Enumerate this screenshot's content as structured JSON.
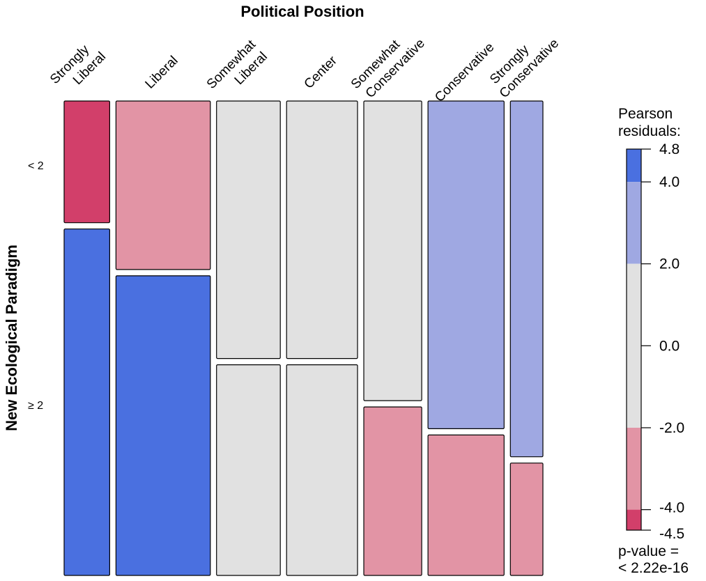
{
  "chart_data": {
    "type": "mosaic",
    "title": "Political Position",
    "ylabel": "New Ecological Paradigm",
    "columns": [
      {
        "name": "Strongly Liberal",
        "lines": [
          "Strongly",
          "Liberal"
        ],
        "weight": 0.07
      },
      {
        "name": "Liberal",
        "lines": [
          "Liberal"
        ],
        "weight": 0.145
      },
      {
        "name": "Somewhat Liberal",
        "lines": [
          "Somewhat",
          "Liberal"
        ],
        "weight": 0.098
      },
      {
        "name": "Center",
        "lines": [
          "Center"
        ],
        "weight": 0.109
      },
      {
        "name": "Somewhat Conservative",
        "lines": [
          "Somewhat",
          "Conservative"
        ],
        "weight": 0.089
      },
      {
        "name": "Conservative",
        "lines": [
          "Conservative"
        ],
        "weight": 0.117
      },
      {
        "name": "Strongly Conservative",
        "lines": [
          "Strongly",
          "Conservative"
        ],
        "weight": 0.05
      }
    ],
    "rows": [
      "< 2",
      "≥ 2"
    ],
    "top_share": [
      0.26,
      0.36,
      0.55,
      0.55,
      0.64,
      0.7,
      0.76
    ],
    "residual_class": [
      [
        "neg_strong",
        "neg",
        "none",
        "none",
        "none",
        "pos",
        "pos"
      ],
      [
        "pos_strong",
        "pos_strong",
        "none",
        "none",
        "neg",
        "neg",
        "neg"
      ]
    ],
    "colors": {
      "pos_strong": "#4a70e0",
      "pos": "#9fa8e2",
      "none": "#e1e1e1",
      "neg": "#e294a5",
      "neg_strong": "#d23f6a"
    },
    "legend": {
      "title_lines": [
        "Pearson",
        "residuals:"
      ],
      "range": [
        -4.5,
        4.8
      ],
      "ticks": [
        "4.8",
        "4.0",
        "2.0",
        "0.0",
        "-2.0",
        "-4.0",
        "-4.5"
      ],
      "tick_values": [
        4.8,
        4.0,
        2.0,
        0.0,
        -2.0,
        -4.0,
        -4.5
      ],
      "bands": [
        {
          "from": 4.0,
          "to": 4.8,
          "class": "pos_strong"
        },
        {
          "from": 2.0,
          "to": 4.0,
          "class": "pos"
        },
        {
          "from": -2.0,
          "to": 2.0,
          "class": "none"
        },
        {
          "from": -4.0,
          "to": -2.0,
          "class": "neg"
        },
        {
          "from": -4.5,
          "to": -4.0,
          "class": "neg_strong"
        }
      ],
      "pvalue_lines": [
        "p-value =",
        "< 2.22e-16"
      ]
    }
  }
}
